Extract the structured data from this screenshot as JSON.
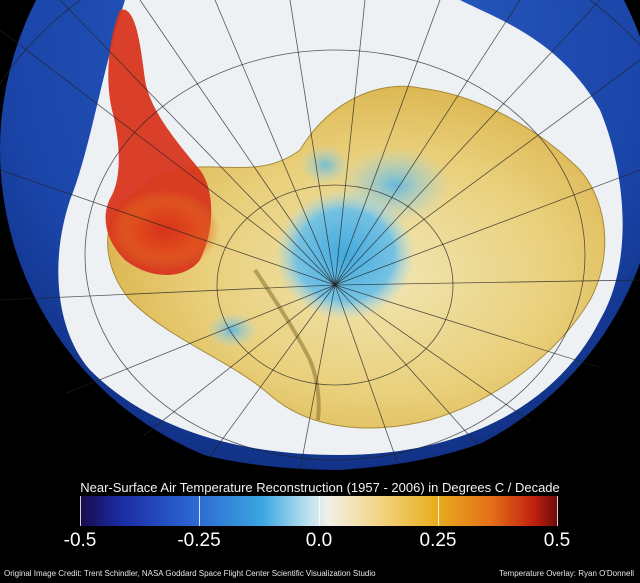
{
  "legend": {
    "title": "Near-Surface Air Temperature Reconstruction (1957 - 2006) in Degrees C / Decade",
    "ticks": [
      "-0.5",
      "-0.25",
      "0.0",
      "0.25",
      "0.5"
    ],
    "range": [
      -0.5,
      0.5
    ],
    "colors": {
      "low": "#1a0a4a",
      "cool": "#3aa6e0",
      "neutral": "#f2f0e6",
      "warm": "#e8b020",
      "high": "#c02010"
    }
  },
  "credits": {
    "image": "Original Image Credit:  Trent Schindler, NASA Goddard Space Flight Center Scientific Visualization Studio",
    "overlay": "Temperature Overlay:  Ryan O'Donnell"
  },
  "map": {
    "subject": "Antarctica",
    "ocean_color": "#1f4fb0",
    "ice_color": "#eef1f4"
  }
}
